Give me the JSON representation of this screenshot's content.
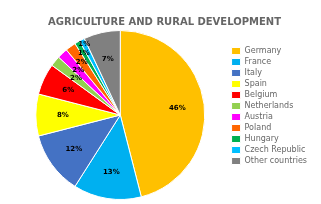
{
  "chart_data": {
    "type": "pie",
    "title": "AGRICULTURE AND RURAL DEVELOPMENT",
    "categories": [
      "Germany",
      "France",
      "Italy",
      "Spain",
      "Belgium",
      "Netherlands",
      "Austria",
      "Poland",
      "Hungary",
      "Czech Republic",
      "Other countries"
    ],
    "values": [
      46,
      13,
      12,
      8,
      6,
      2,
      2,
      2,
      1,
      1,
      7
    ],
    "value_labels": [
      "46%",
      "13%",
      "12%",
      "8%",
      "6%",
      "2%",
      "2%",
      "2%",
      "1%",
      "1%",
      "7%"
    ],
    "colors": [
      "#FFC000",
      "#00B0F0",
      "#4472C4",
      "#FFFF00",
      "#FF0000",
      "#92D050",
      "#FF00FF",
      "#FF6600",
      "#00B050",
      "#00BFFF",
      "#808080"
    ],
    "data_labels": true,
    "legend": "right"
  }
}
